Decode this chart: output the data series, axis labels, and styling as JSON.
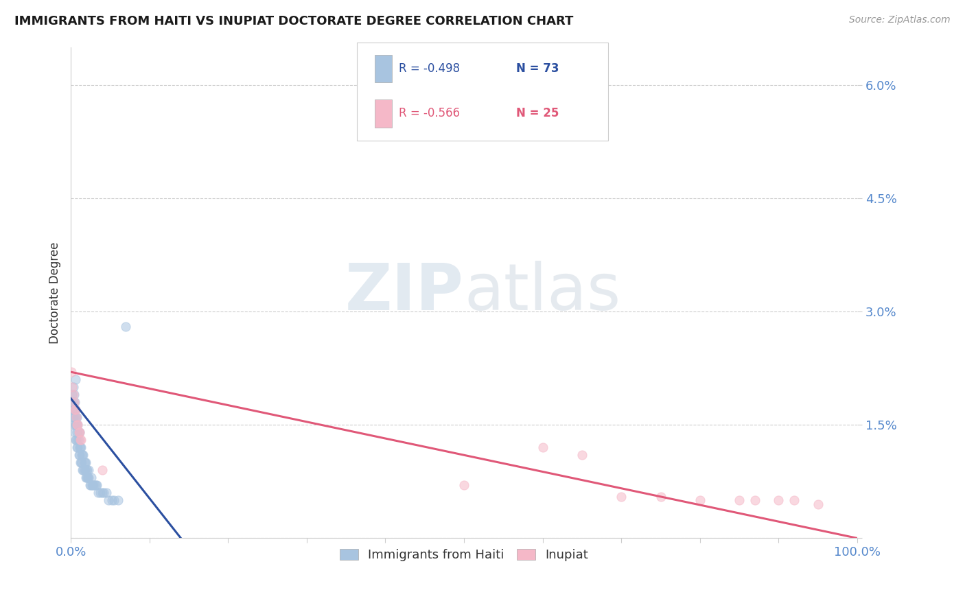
{
  "title": "IMMIGRANTS FROM HAITI VS INUPIAT DOCTORATE DEGREE CORRELATION CHART",
  "source_text": "Source: ZipAtlas.com",
  "ylabel": "Doctorate Degree",
  "xlim": [
    0.0,
    1.0
  ],
  "ylim": [
    0.0,
    0.065
  ],
  "yticks": [
    0.0,
    0.015,
    0.03,
    0.045,
    0.06
  ],
  "ytick_labels": [
    "",
    "1.5%",
    "3.0%",
    "4.5%",
    "6.0%"
  ],
  "xticks": [
    0.0,
    0.1,
    0.2,
    0.3,
    0.4,
    0.5,
    0.6,
    0.7,
    0.8,
    0.9,
    1.0
  ],
  "xtick_labels": [
    "0.0%",
    "",
    "",
    "",
    "",
    "",
    "",
    "",
    "",
    "",
    "100.0%"
  ],
  "legend_r1": "R = -0.498",
  "legend_n1": "N = 73",
  "legend_r2": "R = -0.566",
  "legend_n2": "N = 25",
  "series1_label": "Immigrants from Haiti",
  "series2_label": "Inupiat",
  "series1_color": "#a8c4e0",
  "series2_color": "#f5b8c8",
  "series1_line_color": "#2b4fa0",
  "series2_line_color": "#e05878",
  "watermark_zip": "ZIP",
  "watermark_atlas": "atlas",
  "background_color": "#ffffff",
  "grid_color": "#cccccc",
  "title_color": "#1a1a1a",
  "axis_label_color": "#333333",
  "tick_label_color": "#5588cc",
  "series1_x": [
    0.001,
    0.002,
    0.002,
    0.003,
    0.003,
    0.003,
    0.004,
    0.004,
    0.004,
    0.005,
    0.005,
    0.005,
    0.006,
    0.006,
    0.006,
    0.006,
    0.007,
    0.007,
    0.007,
    0.008,
    0.008,
    0.008,
    0.009,
    0.009,
    0.009,
    0.01,
    0.01,
    0.01,
    0.011,
    0.011,
    0.011,
    0.012,
    0.012,
    0.013,
    0.013,
    0.014,
    0.014,
    0.015,
    0.015,
    0.016,
    0.016,
    0.017,
    0.017,
    0.018,
    0.018,
    0.019,
    0.019,
    0.02,
    0.02,
    0.021,
    0.021,
    0.022,
    0.023,
    0.023,
    0.024,
    0.025,
    0.026,
    0.027,
    0.028,
    0.029,
    0.03,
    0.032,
    0.033,
    0.035,
    0.037,
    0.04,
    0.042,
    0.045,
    0.048,
    0.052,
    0.055,
    0.06,
    0.07
  ],
  "series1_y": [
    0.018,
    0.017,
    0.019,
    0.016,
    0.018,
    0.02,
    0.015,
    0.017,
    0.019,
    0.014,
    0.016,
    0.018,
    0.013,
    0.015,
    0.017,
    0.021,
    0.013,
    0.015,
    0.016,
    0.012,
    0.014,
    0.016,
    0.012,
    0.013,
    0.015,
    0.011,
    0.013,
    0.014,
    0.011,
    0.012,
    0.014,
    0.01,
    0.012,
    0.01,
    0.012,
    0.01,
    0.011,
    0.009,
    0.011,
    0.009,
    0.011,
    0.009,
    0.01,
    0.009,
    0.01,
    0.008,
    0.01,
    0.008,
    0.009,
    0.008,
    0.009,
    0.008,
    0.008,
    0.009,
    0.007,
    0.007,
    0.008,
    0.007,
    0.007,
    0.007,
    0.007,
    0.007,
    0.007,
    0.006,
    0.006,
    0.006,
    0.006,
    0.006,
    0.005,
    0.005,
    0.005,
    0.005,
    0.028
  ],
  "series2_x": [
    0.001,
    0.002,
    0.003,
    0.004,
    0.005,
    0.006,
    0.007,
    0.008,
    0.009,
    0.01,
    0.011,
    0.012,
    0.013,
    0.04,
    0.5,
    0.6,
    0.65,
    0.7,
    0.75,
    0.8,
    0.85,
    0.87,
    0.9,
    0.92,
    0.95
  ],
  "series2_y": [
    0.022,
    0.02,
    0.019,
    0.018,
    0.017,
    0.017,
    0.016,
    0.015,
    0.015,
    0.014,
    0.014,
    0.013,
    0.013,
    0.009,
    0.007,
    0.012,
    0.011,
    0.0055,
    0.0055,
    0.005,
    0.005,
    0.005,
    0.005,
    0.005,
    0.0045
  ],
  "line1_x_start": 0.0,
  "line1_x_end": 0.14,
  "line1_y_start": 0.0185,
  "line1_y_end": 0.0,
  "line2_x_start": 0.0,
  "line2_x_end": 1.0,
  "line2_y_start": 0.022,
  "line2_y_end": 0.0,
  "marker_size": 90,
  "marker_alpha": 0.55,
  "line_width": 2.2
}
